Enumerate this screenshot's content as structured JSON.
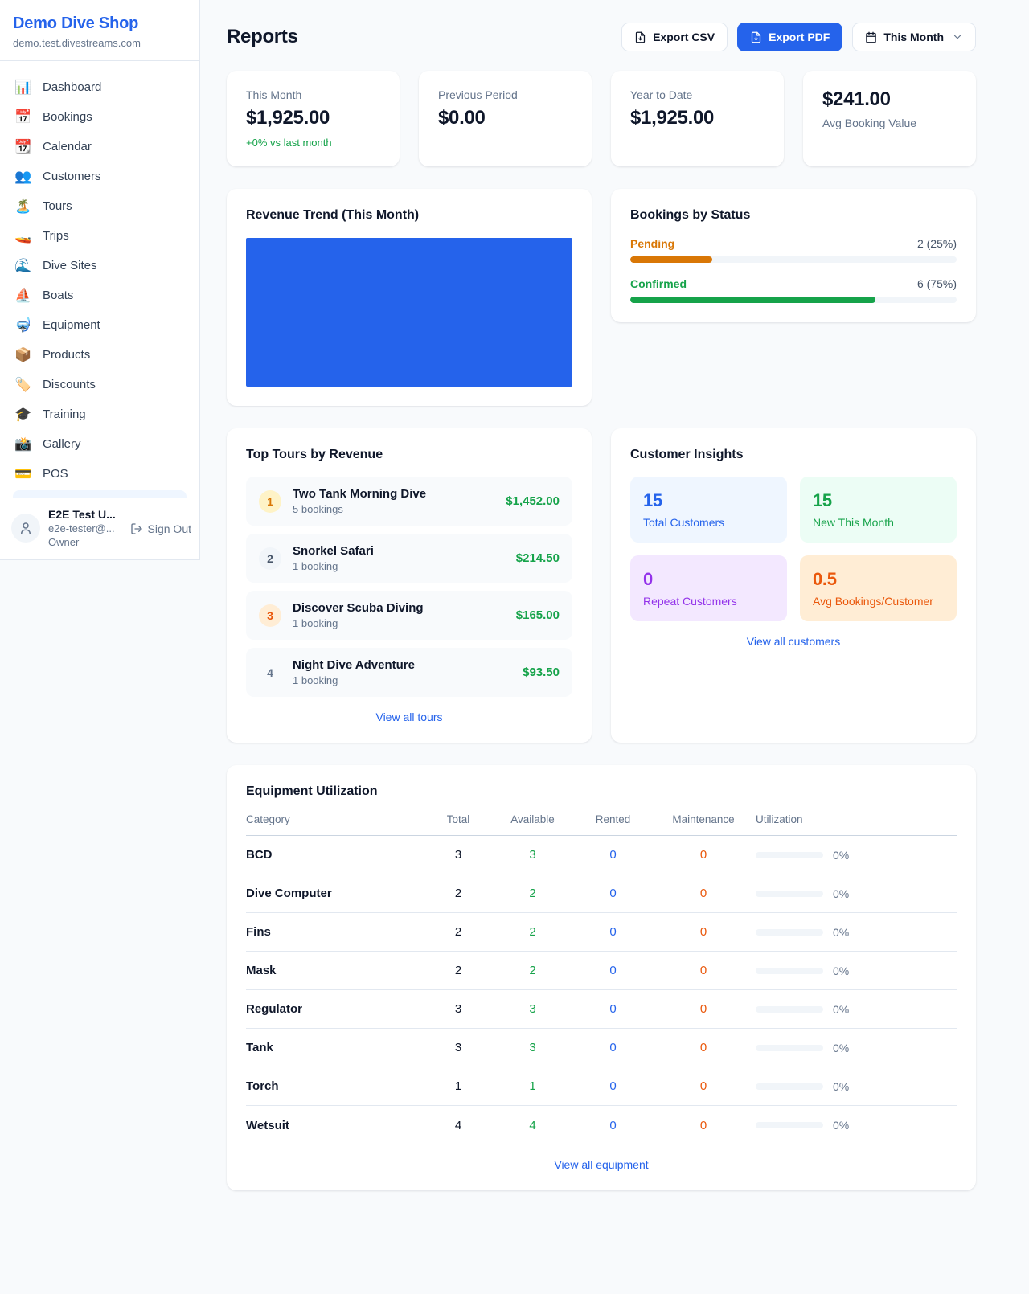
{
  "colors": {
    "accent": "#2563eb",
    "green": "#16a34a",
    "amber": "#d97706",
    "orange": "#ea580c",
    "purple": "#9333ea"
  },
  "sidebar": {
    "shop_name": "Demo Dive Shop",
    "shop_domain": "demo.test.divestreams.com",
    "items": [
      {
        "icon": "📊",
        "label": "Dashboard"
      },
      {
        "icon": "📅",
        "label": "Bookings"
      },
      {
        "icon": "📆",
        "label": "Calendar"
      },
      {
        "icon": "👥",
        "label": "Customers"
      },
      {
        "icon": "🏝️",
        "label": "Tours"
      },
      {
        "icon": "🚤",
        "label": "Trips"
      },
      {
        "icon": "🌊",
        "label": "Dive Sites"
      },
      {
        "icon": "⛵",
        "label": "Boats"
      },
      {
        "icon": "🤿",
        "label": "Equipment"
      },
      {
        "icon": "📦",
        "label": "Products"
      },
      {
        "icon": "🏷️",
        "label": "Discounts"
      },
      {
        "icon": "🎓",
        "label": "Training"
      },
      {
        "icon": "📸",
        "label": "Gallery"
      },
      {
        "icon": "💳",
        "label": "POS"
      }
    ],
    "user": {
      "name": "E2E Test U...",
      "email": "e2e-tester@...",
      "role": "Owner",
      "sign_out_label": "Sign Out"
    }
  },
  "header": {
    "title": "Reports",
    "export_csv": "Export CSV",
    "export_pdf": "Export PDF",
    "period": "This Month"
  },
  "stats": {
    "this_month": {
      "label": "This Month",
      "value": "$1,925.00",
      "delta": "+0% vs last month"
    },
    "previous_period": {
      "label": "Previous Period",
      "value": "$0.00"
    },
    "year_to_date": {
      "label": "Year to Date",
      "value": "$1,925.00"
    },
    "avg_booking": {
      "value": "$241.00",
      "label": "Avg Booking Value"
    }
  },
  "revenue_trend": {
    "title": "Revenue Trend (This Month)"
  },
  "bookings_by_status": {
    "title": "Bookings by Status",
    "rows": [
      {
        "label": "Pending",
        "value_text": "2 (25%)",
        "percent": 25
      },
      {
        "label": "Confirmed",
        "value_text": "6 (75%)",
        "percent": 75
      }
    ]
  },
  "top_tours": {
    "title": "Top Tours by Revenue",
    "rows": [
      {
        "rank": "1",
        "name": "Two Tank Morning Dive",
        "bookings": "5 bookings",
        "revenue": "$1,452.00"
      },
      {
        "rank": "2",
        "name": "Snorkel Safari",
        "bookings": "1 booking",
        "revenue": "$214.50"
      },
      {
        "rank": "3",
        "name": "Discover Scuba Diving",
        "bookings": "1 booking",
        "revenue": "$165.00"
      },
      {
        "rank": "4",
        "name": "Night Dive Adventure",
        "bookings": "1 booking",
        "revenue": "$93.50"
      }
    ],
    "view_all": "View all tours"
  },
  "customer_insights": {
    "title": "Customer Insights",
    "tiles": [
      {
        "value": "15",
        "label": "Total Customers"
      },
      {
        "value": "15",
        "label": "New This Month"
      },
      {
        "value": "0",
        "label": "Repeat Customers"
      },
      {
        "value": "0.5",
        "label": "Avg Bookings/Customer"
      }
    ],
    "view_all": "View all customers"
  },
  "equipment": {
    "title": "Equipment Utilization",
    "columns": [
      "Category",
      "Total",
      "Available",
      "Rented",
      "Maintenance",
      "Utilization"
    ],
    "rows": [
      {
        "category": "BCD",
        "total": "3",
        "available": "3",
        "rented": "0",
        "maintenance": "0",
        "utilization": 0,
        "utilization_text": "0%"
      },
      {
        "category": "Dive Computer",
        "total": "2",
        "available": "2",
        "rented": "0",
        "maintenance": "0",
        "utilization": 0,
        "utilization_text": "0%"
      },
      {
        "category": "Fins",
        "total": "2",
        "available": "2",
        "rented": "0",
        "maintenance": "0",
        "utilization": 0,
        "utilization_text": "0%"
      },
      {
        "category": "Mask",
        "total": "2",
        "available": "2",
        "rented": "0",
        "maintenance": "0",
        "utilization": 0,
        "utilization_text": "0%"
      },
      {
        "category": "Regulator",
        "total": "3",
        "available": "3",
        "rented": "0",
        "maintenance": "0",
        "utilization": 0,
        "utilization_text": "0%"
      },
      {
        "category": "Tank",
        "total": "3",
        "available": "3",
        "rented": "0",
        "maintenance": "0",
        "utilization": 0,
        "utilization_text": "0%"
      },
      {
        "category": "Torch",
        "total": "1",
        "available": "1",
        "rented": "0",
        "maintenance": "0",
        "utilization": 0,
        "utilization_text": "0%"
      },
      {
        "category": "Wetsuit",
        "total": "4",
        "available": "4",
        "rented": "0",
        "maintenance": "0",
        "utilization": 0,
        "utilization_text": "0%"
      }
    ],
    "view_all": "View all equipment"
  }
}
